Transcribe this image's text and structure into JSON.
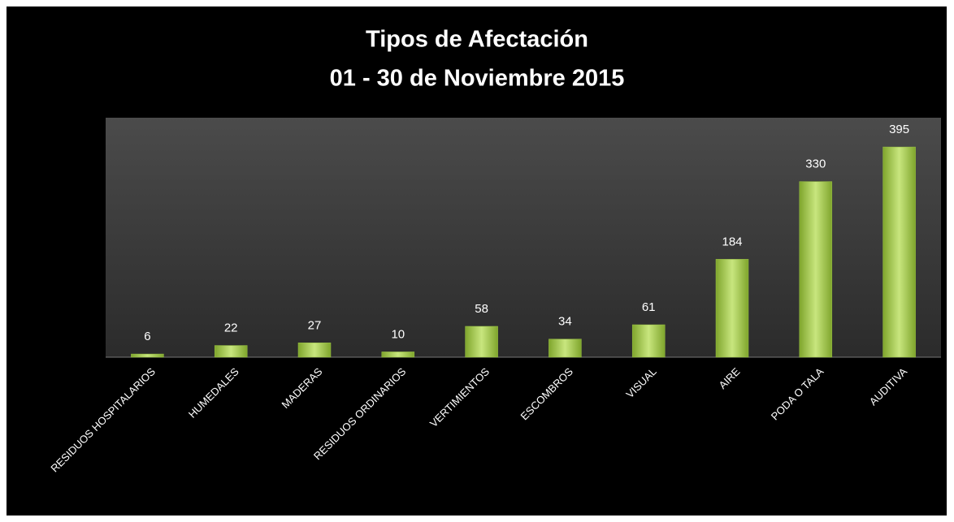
{
  "chart_data": {
    "type": "bar",
    "title": "Tipos de Afectación",
    "subtitle": "01 - 30 de Noviembre 2015",
    "categories": [
      "RESIDUOS HOSPITALARIOS",
      "HUMEDALES",
      "MADERAS",
      "RESIDUOS ORDINARIOS",
      "VERTIMIENTOS",
      "ESCOMBROS",
      "VISUAL",
      "AIRE",
      "PODA O TALA",
      "AUDITIVA"
    ],
    "values": [
      6,
      22,
      27,
      10,
      58,
      34,
      61,
      184,
      330,
      395
    ],
    "color": "#9bc544",
    "ylim": [
      0,
      450
    ]
  }
}
